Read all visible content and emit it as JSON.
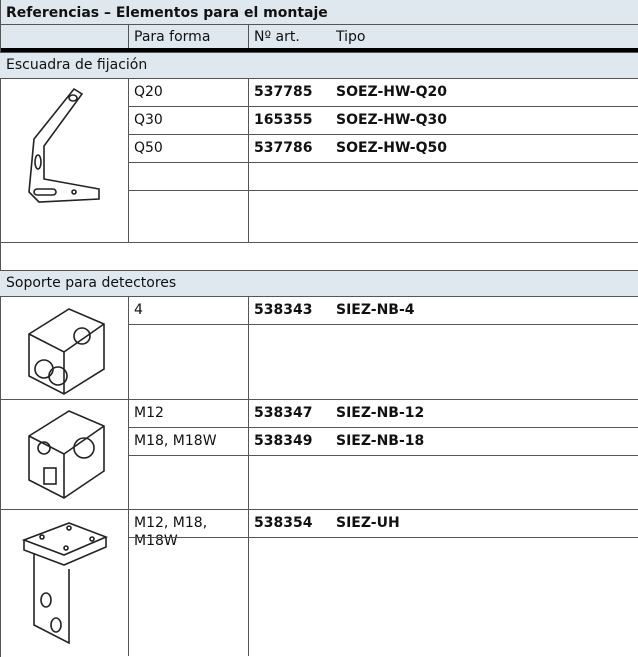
{
  "header": {
    "title": "Referencias – Elementos para el montaje",
    "columns": [
      "Para forma",
      "Nº art.",
      "Tipo"
    ]
  },
  "sections": [
    {
      "title": "Escuadra de fijación",
      "groups": [
        {
          "rows": [
            [
              "Q20",
              "537785",
              "SOEZ-HW-Q20"
            ],
            [
              "Q30",
              "165355",
              "SOEZ-HW-Q30"
            ],
            [
              "Q50",
              "537786",
              "SOEZ-HW-Q50"
            ]
          ]
        }
      ]
    },
    {
      "title": "Soporte para detectores",
      "groups": [
        {
          "rows": [
            [
              "4",
              "538343",
              "SIEZ-NB-4"
            ]
          ]
        },
        {
          "rows": [
            [
              "M12",
              "538347",
              "SIEZ-NB-12"
            ],
            [
              "M18, M18W",
              "538349",
              "SIEZ-NB-18"
            ]
          ]
        },
        {
          "rows": [
            [
              "M12, M18, M18W",
              "538354",
              "SIEZ-UH"
            ]
          ]
        }
      ]
    }
  ]
}
